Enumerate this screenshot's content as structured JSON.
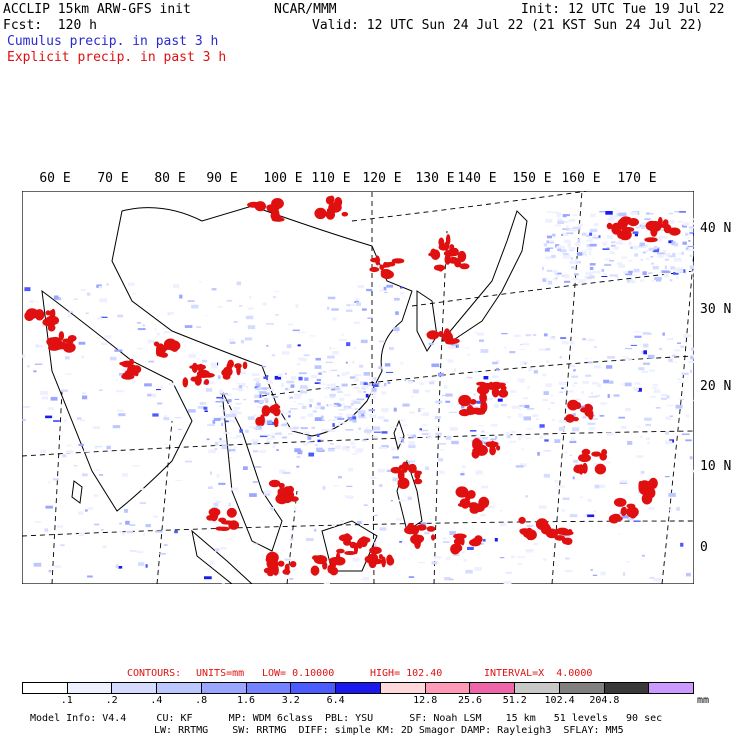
{
  "header": {
    "model_title": "ACCLIP 15km ARW-GFS init",
    "forecast": "Fcst:  120 h",
    "center": "NCAR/MMM",
    "init": "Init: 12 UTC Tue 19 Jul 22",
    "valid": "Valid: 12 UTC Sun 24 Jul 22 (21 KST Sun 24 Jul 22)",
    "cumulus_label": "Cumulus precip. in past 3 h",
    "explicit_label": "Explicit precip. in past 3 h"
  },
  "colors": {
    "cumulus": "#2a2acf",
    "explicit": "#e01010",
    "coastline": "#000000",
    "background": "#ffffff"
  },
  "map": {
    "longitude_labels": [
      "60 E",
      "70 E",
      "80 E",
      "90 E",
      "100 E",
      "110 E",
      "120 E",
      "130 E",
      "140 E",
      "150 E",
      "160 E",
      "170 E"
    ],
    "latitude_labels": [
      "40 N",
      "30 N",
      "20 N",
      "10 N",
      "0"
    ],
    "projection": "mercator",
    "grid": "dashed"
  },
  "contour_info": {
    "label": "CONTOURS:",
    "units": "UNITS=mm",
    "low": "LOW= 0.10000",
    "high": "HIGH= 102.40",
    "interval": "INTERVAL=X  4.0000"
  },
  "colorbar": {
    "colors": [
      "#ffffff",
      "#eef0ff",
      "#d6dcff",
      "#bcc6ff",
      "#9aa6ff",
      "#7482ff",
      "#4a5cff",
      "#1a1aee",
      "#ffd8dc",
      "#ff9ab8",
      "#ee66a8",
      "#c8c8c8",
      "#808080",
      "#3a3a3a",
      "#cc99ff"
    ],
    "tick_labels": [
      ".1",
      ".2",
      ".4",
      ".8",
      "1.6",
      "3.2",
      "6.4",
      "12.8",
      "25.6",
      "51.2",
      "102.4",
      "204.8"
    ],
    "units": "mm"
  },
  "model_info": {
    "line1": "Model Info: V4.4     CU: KF      MP: WDM 6class  PBL: YSU      SF: Noah LSM    15 km   51 levels   90 sec",
    "line2": "LW: RRTMG    SW: RRTMG  DIFF: simple KM: 2D Smagor DAMP: Rayleigh3  SFLAY: MM5"
  }
}
